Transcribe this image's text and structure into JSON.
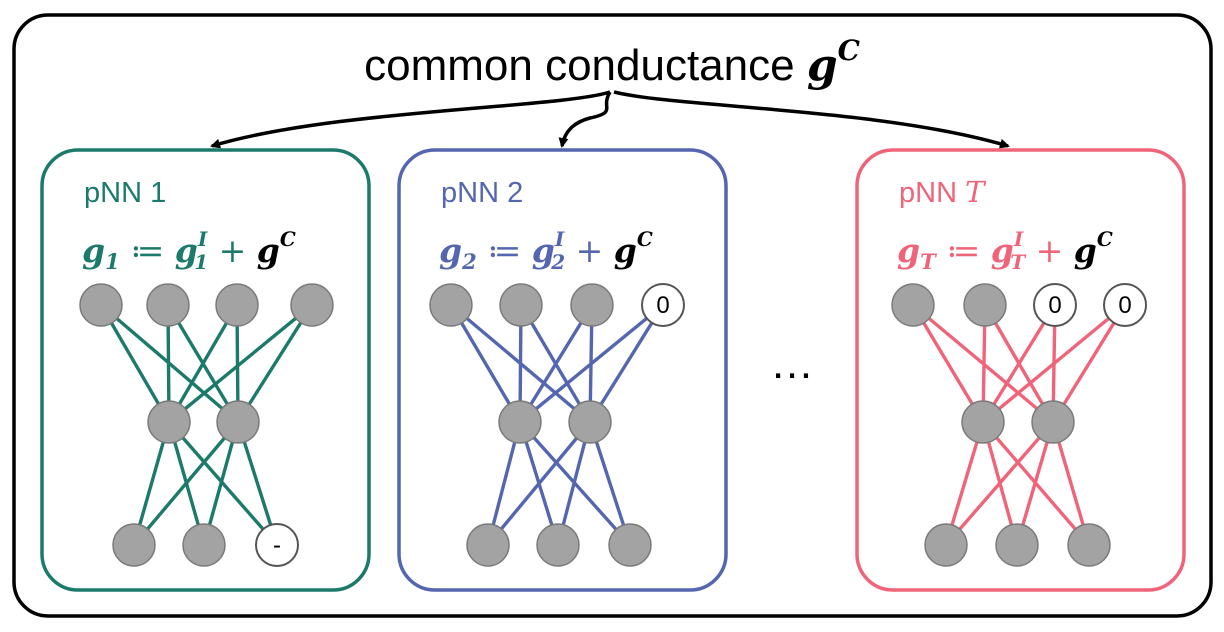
{
  "title": {
    "text": "common conductance ",
    "symbol": "g",
    "superscript": "C"
  },
  "ellipsis": "…",
  "colors": {
    "frame": "#000000",
    "node_fill": "#a3a3a3",
    "node_stroke": "#7a7a7a",
    "pruned_fill": "#ffffff",
    "pruned_stroke": "#555555"
  },
  "panels": [
    {
      "label": "pNN 1",
      "label_prefix": "pNN ",
      "label_index": "1",
      "index_italic": false,
      "color": "#1b7a6a",
      "equation": {
        "lhs": "g",
        "lhs_sub": "1",
        "assign": "≔",
        "term": "g",
        "term_sup": "I",
        "term_sub": "1",
        "plus": "+",
        "common": "g",
        "common_sup": "C"
      },
      "layers": [
        [
          {
            "v": ""
          },
          {
            "v": ""
          },
          {
            "v": ""
          },
          {
            "v": ""
          }
        ],
        [
          {
            "v": ""
          },
          {
            "v": ""
          }
        ],
        [
          {
            "v": ""
          },
          {
            "v": ""
          },
          {
            "v": "-",
            "pruned": true
          }
        ]
      ]
    },
    {
      "label": "pNN 2",
      "label_prefix": "pNN ",
      "label_index": "2",
      "index_italic": false,
      "color": "#5566b0",
      "equation": {
        "lhs": "g",
        "lhs_sub": "2",
        "assign": "≔",
        "term": "g",
        "term_sup": "I",
        "term_sub": "2",
        "plus": "+",
        "common": "g",
        "common_sup": "C"
      },
      "layers": [
        [
          {
            "v": ""
          },
          {
            "v": ""
          },
          {
            "v": ""
          },
          {
            "v": "0",
            "pruned": true
          }
        ],
        [
          {
            "v": ""
          },
          {
            "v": ""
          }
        ],
        [
          {
            "v": ""
          },
          {
            "v": ""
          },
          {
            "v": ""
          }
        ]
      ]
    },
    {
      "label": "pNN T",
      "label_prefix": "pNN ",
      "label_index": "T",
      "index_italic": true,
      "color": "#f0647a",
      "equation": {
        "lhs": "g",
        "lhs_sub": "T",
        "assign": "≔",
        "term": "g",
        "term_sup": "I",
        "term_sub": "T",
        "plus": "+",
        "common": "g",
        "common_sup": "C"
      },
      "layers": [
        [
          {
            "v": ""
          },
          {
            "v": ""
          },
          {
            "v": "0",
            "pruned": true
          },
          {
            "v": "0",
            "pruned": true
          }
        ],
        [
          {
            "v": ""
          },
          {
            "v": ""
          }
        ],
        [
          {
            "v": ""
          },
          {
            "v": ""
          },
          {
            "v": ""
          }
        ]
      ]
    }
  ]
}
